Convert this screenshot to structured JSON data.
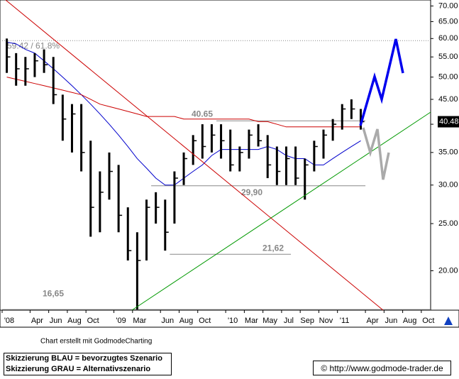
{
  "chart_data": {
    "type": "ohlc",
    "x": [
      "2008-01",
      "2008-02",
      "2008-03",
      "2008-04",
      "2008-05",
      "2008-06",
      "2008-07",
      "2008-08",
      "2008-09",
      "2008-10",
      "2008-11",
      "2008-12",
      "2009-01",
      "2009-02",
      "2009-03",
      "2009-04",
      "2009-05",
      "2009-06",
      "2009-07",
      "2009-08",
      "2009-09",
      "2009-10",
      "2009-11",
      "2009-12",
      "2010-01",
      "2010-02",
      "2010-03",
      "2010-04",
      "2010-05",
      "2010-06",
      "2010-07",
      "2010-08",
      "2010-09",
      "2010-10",
      "2010-11",
      "2010-12",
      "2011-01",
      "2011-02",
      "2011-03"
    ],
    "high": [
      60,
      56,
      55,
      56,
      57,
      55,
      46,
      44,
      44,
      37,
      32,
      35,
      33,
      27,
      24,
      28,
      29,
      28,
      32,
      35,
      38,
      40,
      40,
      40,
      39,
      36,
      39,
      40,
      38,
      36,
      36,
      36,
      34,
      37,
      39,
      41,
      44,
      45,
      43
    ],
    "low": [
      51,
      48,
      48,
      50,
      51,
      44,
      37,
      35,
      32,
      23.5,
      24,
      28,
      24,
      21,
      16.65,
      21,
      25,
      22,
      25,
      30,
      33,
      34,
      35,
      34,
      32,
      32,
      34,
      36,
      31,
      30,
      30,
      30,
      28,
      32,
      34,
      37,
      39,
      41,
      39
    ],
    "close": [
      55,
      52,
      52,
      54,
      53,
      46,
      41,
      42,
      35,
      27,
      29,
      32,
      26,
      22,
      21,
      27,
      27,
      24,
      31,
      34,
      37,
      36,
      38,
      37,
      33,
      35,
      38,
      37,
      33,
      32,
      34,
      31,
      33,
      36,
      38,
      40,
      43,
      43,
      40.48
    ],
    "bar_color": "#000000",
    "moving_averages": [
      {
        "color": "#0000cc",
        "values": [
          59,
          58.5,
          57,
          56,
          54,
          52,
          50,
          48,
          46,
          44,
          42,
          40,
          38,
          36,
          34,
          32.5,
          31,
          30,
          30,
          31,
          32,
          33,
          34.5,
          35.5,
          35.5,
          35.5,
          35.5,
          35.5,
          36,
          35.5,
          34.5,
          34,
          34,
          33,
          33,
          34,
          35,
          36,
          37
        ]
      },
      {
        "color": "#cc0000",
        "values": [
          50,
          49.5,
          49,
          48.5,
          48,
          47.5,
          47,
          46.5,
          46,
          45,
          44,
          43.5,
          43,
          42.5,
          42,
          41.5,
          41.5,
          41.5,
          41.5,
          41,
          41,
          41,
          41,
          41,
          41,
          41,
          41,
          40.5,
          40.5,
          40,
          39.5,
          39.5,
          39.5,
          39.5,
          39.5,
          39.5,
          39.5,
          39.5,
          39.5
        ]
      }
    ],
    "last_label": "40.48",
    "log_scale": true,
    "ylim": [
      16.6,
      72
    ],
    "yticks": [
      {
        "value": 20,
        "label": "20.00"
      },
      {
        "value": 25,
        "label": "25.00"
      },
      {
        "value": 30,
        "label": "30.00"
      },
      {
        "value": 35,
        "label": "35.00"
      },
      {
        "value": 40,
        "label": "40.00"
      },
      {
        "value": 45,
        "label": "45.00"
      },
      {
        "value": 50,
        "label": "50.00"
      },
      {
        "value": 55,
        "label": "55.00"
      },
      {
        "value": 60,
        "label": "60.00"
      },
      {
        "value": 65,
        "label": "65.00"
      },
      {
        "value": 70,
        "label": "70.00"
      }
    ],
    "xlim": [
      "2008-01",
      "2011-11"
    ],
    "xticks": [
      {
        "value": "2008-01",
        "label": "'08"
      },
      {
        "value": "2008-04",
        "label": "Apr"
      },
      {
        "value": "2008-06",
        "label": "Jun"
      },
      {
        "value": "2008-08",
        "label": "Aug"
      },
      {
        "value": "2008-10",
        "label": "Oct"
      },
      {
        "value": "2009-01",
        "label": "'09"
      },
      {
        "value": "2009-03",
        "label": "Mar"
      },
      {
        "value": "2009-06",
        "label": "Jun"
      },
      {
        "value": "2009-08",
        "label": "Aug"
      },
      {
        "value": "2009-10",
        "label": "Oct"
      },
      {
        "value": "2010-01",
        "label": "'10"
      },
      {
        "value": "2010-03",
        "label": "Mar"
      },
      {
        "value": "2010-05",
        "label": "May"
      },
      {
        "value": "2010-07",
        "label": "Jul"
      },
      {
        "value": "2010-09",
        "label": "Sep"
      },
      {
        "value": "2010-11",
        "label": "Nov"
      },
      {
        "value": "2011-01",
        "label": "'11"
      },
      {
        "value": "2011-04",
        "label": "Apr"
      },
      {
        "value": "2011-06",
        "label": "Jun"
      },
      {
        "value": "2011-08",
        "label": "Aug"
      },
      {
        "value": "2011-10",
        "label": "Oct"
      }
    ],
    "levels": [
      {
        "value": 59.42,
        "label": "59.42 / 61.8%",
        "from": "2008-01",
        "to": "2011-11"
      },
      {
        "value": 40.65,
        "label": "40.65",
        "from": "2009-12",
        "to": "2011-04"
      },
      {
        "value": 29.9,
        "label": "29,90",
        "from": "2009-05",
        "to": "2011-04"
      },
      {
        "value": 21.62,
        "label": "21,62",
        "from": "2009-07",
        "to": "2010-08"
      },
      {
        "value": 16.65,
        "label": "16,65",
        "from": "2008-01",
        "to": "2011-11"
      }
    ]
  },
  "footer": {
    "credit": "Chart erstellt mit GodmodeCharting",
    "legend": [
      "Skizzierung BLAU = bevorzugtes Szenario",
      "Skizzierung GRAU = Alternativszenario"
    ],
    "url": "© http://www.godmode-trader.de"
  }
}
